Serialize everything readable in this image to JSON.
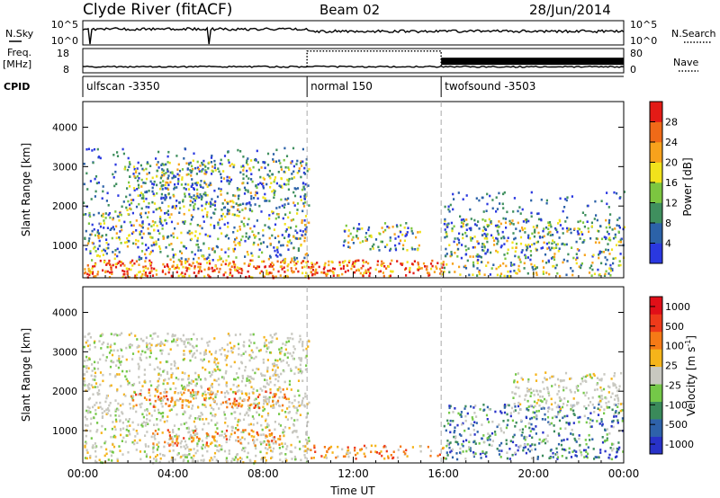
{
  "header": {
    "station": "Clyde River (fitACF)",
    "beam": "Beam 02",
    "date": "28/Jun/2014"
  },
  "chart_data": [
    {
      "panel": "noise",
      "type": "line",
      "left_label": "N.Sky",
      "left_ticks": [
        "10^5",
        "10^0"
      ],
      "right_label": "N.Search",
      "right_ticks": [
        "10^5",
        "10^0"
      ],
      "series": [
        {
          "name": "N.Sky",
          "style": "solid",
          "level": 0.6,
          "dips_at_hours": [
            0.3,
            5.6
          ]
        },
        {
          "name": "N.Search",
          "style": "dotted"
        }
      ]
    },
    {
      "panel": "freq-nave",
      "type": "line",
      "left_label": "Freq.",
      "left_unit": "[MHz]",
      "left_ticks": [
        18,
        8
      ],
      "left_range": [
        8,
        18
      ],
      "right_label": "Nave",
      "right_ticks": [
        80,
        0
      ],
      "right_range": [
        0,
        80
      ],
      "freq_mhz": 10.5,
      "nave_segments": [
        {
          "start_h": 9.95,
          "end_h": 15.9,
          "nave": 72,
          "style": "dotted"
        },
        {
          "start_h": 15.9,
          "end_h": 24.0,
          "nave": 38,
          "style": "thick"
        }
      ]
    },
    {
      "panel": "cpid",
      "type": "table",
      "label": "CPID",
      "segments": [
        {
          "start_h": 0.0,
          "name": "ulfscan -3350"
        },
        {
          "start_h": 9.95,
          "name": "normal 150"
        },
        {
          "start_h": 15.9,
          "name": "twofsound -3503"
        }
      ]
    },
    {
      "panel": "power",
      "type": "heatmap",
      "ylabel": "Slant Range [km]",
      "yticks": [
        1000,
        2000,
        3000,
        4000
      ],
      "ylim": [
        180,
        4650
      ],
      "xlim": [
        0,
        24
      ],
      "colorbar": {
        "label": "Power [dB]",
        "ticks": [
          "4",
          "8",
          "12",
          "16",
          "20",
          "24",
          "28"
        ],
        "colors": [
          "#2a38e0",
          "#2c62a8",
          "#3f8f5e",
          "#7cc640",
          "#f1e21c",
          "#f7a21c",
          "#f06a18",
          "#e31b16"
        ]
      },
      "scatter_bands": [
        {
          "t0": 0.0,
          "t1": 10.0,
          "r0": 200,
          "r1": 650,
          "level": "high"
        },
        {
          "t0": 0.0,
          "t1": 10.0,
          "r0": 650,
          "r1": 1900,
          "level": "mid"
        },
        {
          "t0": 1.8,
          "t1": 10.0,
          "r0": 1900,
          "r1": 3200,
          "level": "mid"
        },
        {
          "t0": 0.0,
          "t1": 10.0,
          "r0": 2000,
          "r1": 3500,
          "level": "sparse"
        },
        {
          "t0": 10.0,
          "t1": 16.0,
          "r0": 250,
          "r1": 650,
          "level": "high"
        },
        {
          "t0": 11.5,
          "t1": 15.0,
          "r0": 900,
          "r1": 1600,
          "level": "mid"
        },
        {
          "t0": 16.0,
          "t1": 24.0,
          "r0": 250,
          "r1": 1700,
          "level": "mid"
        },
        {
          "t0": 16.0,
          "t1": 24.0,
          "r0": 1200,
          "r1": 2400,
          "level": "sparse"
        }
      ]
    },
    {
      "panel": "velocity",
      "type": "heatmap",
      "ylabel": "Slant Range [km]",
      "yticks": [
        1000,
        2000,
        3000,
        4000
      ],
      "ylim": [
        180,
        4650
      ],
      "xlim": [
        0,
        24
      ],
      "xticks": [
        "00:00",
        "04:00",
        "08:00",
        "12:00",
        "16:00",
        "20:00",
        "00:00"
      ],
      "xlabel": "Time UT",
      "colorbar": {
        "label": "Velocity [m s",
        "superscript": "-1",
        "label_end": "]",
        "ticks": [
          "1000",
          "500",
          "100",
          "25",
          "-25",
          "-100",
          "-500",
          "-1000"
        ],
        "colors": [
          "#2832c8",
          "#2e62aa",
          "#3a8a5a",
          "#74c848",
          "#c8c8c0",
          "#f5b41a",
          "#f57a16",
          "#ee3a1a",
          "#e10f18"
        ]
      },
      "scatter_bands": [
        {
          "t0": 0.0,
          "t1": 10.0,
          "r0": 200,
          "r1": 3500,
          "level": "gray"
        },
        {
          "t0": 2.0,
          "t1": 9.0,
          "r0": 1600,
          "r1": 2100,
          "level": "orange"
        },
        {
          "t0": 3.0,
          "t1": 9.0,
          "r0": 650,
          "r1": 1050,
          "level": "orange"
        },
        {
          "t0": 10.0,
          "t1": 16.0,
          "r0": 300,
          "r1": 650,
          "level": "orange"
        },
        {
          "t0": 16.0,
          "t1": 24.0,
          "r0": 300,
          "r1": 1700,
          "level": "green"
        },
        {
          "t0": 19.0,
          "t1": 24.0,
          "r0": 1500,
          "r1": 2500,
          "level": "gray"
        }
      ]
    }
  ]
}
